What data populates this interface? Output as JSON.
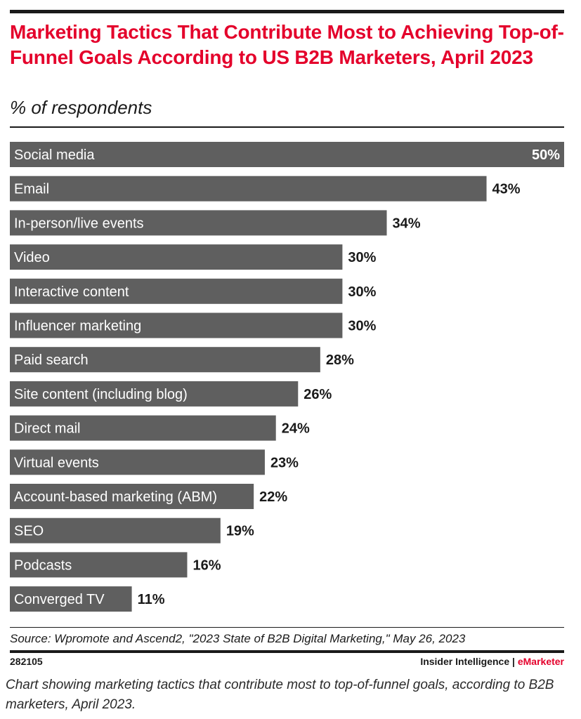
{
  "header": {
    "title": "Marketing Tactics That Contribute Most to Achieving Top-of-Funnel Goals According to US B2B Marketers, April 2023",
    "subtitle": "% of respondents"
  },
  "chart_data": {
    "type": "bar",
    "orientation": "horizontal",
    "title": "Marketing Tactics That Contribute Most to Achieving Top-of-Funnel Goals According to US B2B Marketers, April 2023",
    "subtitle": "% of respondents",
    "categories": [
      "Social media",
      "Email",
      "In-person/live events",
      "Video",
      "Interactive content",
      "Influencer marketing",
      "Paid search",
      "Site content (including blog)",
      "Direct mail",
      "Virtual events",
      "Account-based marketing (ABM)",
      "SEO",
      "Podcasts",
      "Converged TV"
    ],
    "values": [
      50,
      43,
      34,
      30,
      30,
      30,
      28,
      26,
      24,
      23,
      22,
      19,
      16,
      11
    ],
    "value_labels": [
      "50%",
      "43%",
      "34%",
      "30%",
      "30%",
      "30%",
      "28%",
      "26%",
      "24%",
      "23%",
      "22%",
      "19%",
      "16%",
      "11%"
    ],
    "xlim": [
      0,
      50
    ],
    "grid": false,
    "legend": "none",
    "bar_color": "#5f5f5f",
    "title_color": "#e4002b"
  },
  "footer": {
    "source": "Source: Wpromote and Ascend2, \"2023 State of B2B Digital Marketing,\" May 26, 2023",
    "chart_id": "282105",
    "brand_a": "Insider Intelligence",
    "brand_sep": " | ",
    "brand_b": "eMarketer"
  },
  "caption": "Chart showing marketing tactics that contribute most to top-of-funnel goals, according to B2B marketers, April 2023."
}
